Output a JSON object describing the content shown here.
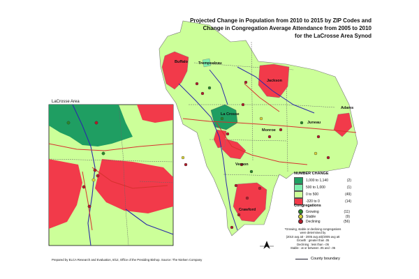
{
  "title": {
    "line1": "Projected Change in Population from 2010 to 2015 by ZIP Codes and",
    "line2": "Change in Congregation Average Attendance from 2005 to 2010",
    "line3": "for the LaCrosse Area Synod"
  },
  "inset_label": "LaCrosse Area",
  "cities": {
    "buffalo": "Buffalo",
    "trempealeau": "Trempealeau",
    "jackson": "Jackson",
    "lacrosse": "La Crosse",
    "monroe": "Monroe",
    "juneau": "Juneau",
    "adams": "Adams",
    "vernon": "Vernon",
    "crawford": "Crawford"
  },
  "legend": {
    "heading": "NUMBER CHANGE",
    "rows": [
      {
        "range": "1,000  to  1,140",
        "count": "(2)",
        "color": "#1f9e62"
      },
      {
        "range": "500  to  1,000",
        "count": "(1)",
        "color": "#7ff0b0"
      },
      {
        "range": "0  to    500",
        "count": "(49)",
        "color": "#ccff99"
      },
      {
        "range": "-320  to      0",
        "count": "(14)",
        "color": "#f23a4a"
      }
    ]
  },
  "congregations": {
    "heading": "Congregations",
    "rows": [
      {
        "label": "Growing",
        "count": "(11)",
        "color": "#2a8a2a"
      },
      {
        "label": "Stable",
        "count": "(9)",
        "color": "#d8d23a"
      },
      {
        "label": "Declining",
        "count": "(56)",
        "color": "#b21c2a"
      }
    ]
  },
  "notes": [
    "*Growing, stable or declining congregations",
    "were determined by",
    "(2010 avg att - 2005 avg att)/2005 avg att",
    "Growth : greater than .05",
    "Declining : less than -.05",
    "Stable : at or between .05 and -.05"
  ],
  "county_boundary_label": "County boundary",
  "footer": "Prepared by ELCA Research and Evaluation, 8/12, Office of the Presiding Bishop. Source: The Nielsen Company",
  "colors": {
    "green_light": "#ccff99",
    "green_dark": "#1f9e62",
    "red": "#f23a4a",
    "road": "#d6312e",
    "river": "#2a2aa8"
  }
}
